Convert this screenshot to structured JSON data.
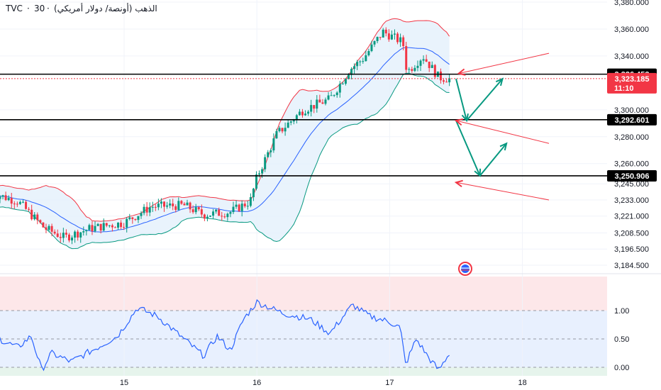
{
  "header": {
    "symbol": "TVC",
    "interval": "30",
    "name": "الذهب (أونصة/ دولار أمريكي)",
    "separator": "·"
  },
  "colors": {
    "up": "#089981",
    "down": "#f23645",
    "bb_basis": "#2962ff",
    "bb_upper": "#f23645",
    "bb_lower": "#089981",
    "bb_fill": "#e3f0fb",
    "arrow_green": "#089981",
    "arrow_red": "#f23645",
    "price_badge": "#f23645",
    "level_badge": "#000000",
    "osc_line": "#2962ff",
    "osc_top_zone": "#fde7e9",
    "osc_mid_zone": "#e8f0fe",
    "osc_low_zone": "#e6f4ec"
  },
  "icons": [
    "flag-icon"
  ],
  "chart_data": [
    {
      "type": "candlestick",
      "title": "",
      "xlabel": "",
      "ylabel": "",
      "ylim": [
        3184.5,
        3380.0
      ],
      "x_ticks": [
        "15",
        "16",
        "17",
        "18"
      ],
      "y_ticks": [
        "3,380.000",
        "3,360.000",
        "3,340.000",
        "3,300.000",
        "3,280.000",
        "3,260.000",
        "3,245.000",
        "3,233.000",
        "3,221.000",
        "3,208.500",
        "3,196.500",
        "3,184.500"
      ],
      "horizontal_levels": [
        {
          "label": "3,326.453",
          "value": 3326.453
        },
        {
          "label": "3,292.601",
          "value": 3292.601
        },
        {
          "label": "3,250.906",
          "value": 3250.906
        }
      ],
      "current_price": {
        "label": "3,323.185",
        "value": 3323.185,
        "countdown": "11:10"
      },
      "anchors": [
        {
          "date": "14.0",
          "price": 3238
        },
        {
          "date": "14.2",
          "price": 3232
        },
        {
          "date": "14.4",
          "price": 3212
        },
        {
          "date": "14.55",
          "price": 3205
        },
        {
          "date": "14.75",
          "price": 3212
        },
        {
          "date": "15.0",
          "price": 3216
        },
        {
          "date": "15.2",
          "price": 3228
        },
        {
          "date": "15.45",
          "price": 3229
        },
        {
          "date": "15.6",
          "price": 3222
        },
        {
          "date": "15.8",
          "price": 3224
        },
        {
          "date": "15.95",
          "price": 3232
        },
        {
          "date": "16.0",
          "price": 3250
        },
        {
          "date": "16.15",
          "price": 3282
        },
        {
          "date": "16.35",
          "price": 3300
        },
        {
          "date": "16.55",
          "price": 3308
        },
        {
          "date": "16.7",
          "price": 3330
        },
        {
          "date": "16.8",
          "price": 3338
        },
        {
          "date": "16.95",
          "price": 3358
        },
        {
          "date": "17.1",
          "price": 3350
        },
        {
          "date": "17.13",
          "price": 3328
        },
        {
          "date": "17.25",
          "price": 3340
        },
        {
          "date": "17.37",
          "price": 3324
        },
        {
          "date": "17.45",
          "price": 3323
        }
      ],
      "projection": [
        {
          "date": "17.5",
          "price": 3323
        },
        {
          "date": "17.58",
          "price": 3292
        },
        {
          "date": "17.85",
          "price": 3323
        },
        {
          "date": "17.5",
          "price": 3292
        },
        {
          "date": "17.68",
          "price": 3251
        },
        {
          "date": "17.88",
          "price": 3275
        }
      ],
      "red_arrows": [
        {
          "from_date": "18.2",
          "from_price": 3342,
          "to_date": "17.52",
          "to_price": 3327
        },
        {
          "from_date": "18.2",
          "from_price": 3275,
          "to_date": "17.5",
          "to_price": 3292
        },
        {
          "from_date": "18.2",
          "from_price": 3233,
          "to_date": "17.5",
          "to_price": 3246
        }
      ]
    },
    {
      "type": "line",
      "title": "",
      "ylim": [
        -0.15,
        1.6
      ],
      "y_ticks": [
        "1.00",
        "0.50",
        "0.00"
      ],
      "zones": [
        {
          "from": 1.0,
          "to": 1.6,
          "name": "overbought"
        },
        {
          "from": 0.0,
          "to": 1.0,
          "name": "middle"
        },
        {
          "from": -0.15,
          "to": 0.0,
          "name": "oversold"
        }
      ],
      "anchors": [
        {
          "date": "14.0",
          "value": 0.6
        },
        {
          "date": "14.1",
          "value": 0.45
        },
        {
          "date": "14.2",
          "value": 0.35
        },
        {
          "date": "14.3",
          "value": 0.55
        },
        {
          "date": "14.38",
          "value": -0.05
        },
        {
          "date": "14.45",
          "value": 0.25
        },
        {
          "date": "14.6",
          "value": 0.1
        },
        {
          "date": "14.8",
          "value": 0.35
        },
        {
          "date": "14.95",
          "value": 0.55
        },
        {
          "date": "15.1",
          "value": 1.05
        },
        {
          "date": "15.25",
          "value": 0.9
        },
        {
          "date": "15.4",
          "value": 0.6
        },
        {
          "date": "15.6",
          "value": 0.2
        },
        {
          "date": "15.7",
          "value": 0.55
        },
        {
          "date": "15.8",
          "value": 0.3
        },
        {
          "date": "15.9",
          "value": 0.85
        },
        {
          "date": "16.0",
          "value": 1.15
        },
        {
          "date": "16.2",
          "value": 0.95
        },
        {
          "date": "16.4",
          "value": 0.85
        },
        {
          "date": "16.55",
          "value": 0.6
        },
        {
          "date": "16.72",
          "value": 1.1
        },
        {
          "date": "16.85",
          "value": 0.9
        },
        {
          "date": "17.0",
          "value": 0.8
        },
        {
          "date": "17.08",
          "value": 0.7
        },
        {
          "date": "17.12",
          "value": 0.05
        },
        {
          "date": "17.2",
          "value": 0.5
        },
        {
          "date": "17.3",
          "value": 0.15
        },
        {
          "date": "17.37",
          "value": -0.05
        },
        {
          "date": "17.45",
          "value": 0.25
        }
      ]
    }
  ]
}
